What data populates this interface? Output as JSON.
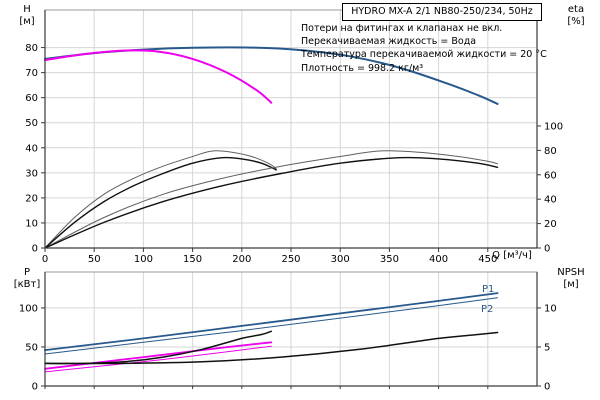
{
  "panel": {
    "title_box": "HYDRO MX-A 2/1 NB80-250/234, 50Hz"
  },
  "info_lines": [
    "Потери на фитингах и клапанах не вкл.",
    "Перекачиваемая жидкость = Вода",
    "Температура перекачиваемой жидкости = 20 °C",
    "Плотность = 998.2 кг/м³"
  ],
  "labels": {
    "p1": "P1",
    "p2": "P2"
  },
  "axis_titles": {
    "head": "H\n[м]",
    "eta": "eta\n[%]",
    "power": "P\n[кВт]",
    "npsh": "NPSH\n[м]",
    "flow": "Q [м³/ч]"
  },
  "colors": {
    "two_pumps": "#28598c",
    "one_pump": "#ee00ee",
    "eta_thin": "#5f5f5f",
    "black": "#111111",
    "grid": "#d6d6d6",
    "frame": "#9a9a9a",
    "axis": "#3a3a3a",
    "text": "#000000"
  },
  "chart_data": [
    {
      "name": "hq-chart",
      "type": "line",
      "xlabel": "Q [м³/ч]",
      "ylabel_left": "H [м]",
      "ylabel_right": "eta [%]",
      "xlim": [
        0,
        500
      ],
      "xticks": [
        0,
        50,
        100,
        150,
        200,
        250,
        300,
        350,
        400,
        450
      ],
      "xtick_labels": true,
      "ylim_left": [
        0,
        95
      ],
      "yticks_left": [
        0,
        10,
        20,
        30,
        40,
        50,
        60,
        70,
        80
      ],
      "ylim_right": [
        0,
        195
      ],
      "yticks_right": [
        0,
        20,
        40,
        60,
        80,
        100
      ],
      "grid": true,
      "series": [
        {
          "name": "head-2pumps",
          "axis": "left",
          "color": "two_pumps",
          "width": 2,
          "points": [
            [
              0,
              75.5
            ],
            [
              50,
              77.8
            ],
            [
              100,
              79.2
            ],
            [
              150,
              79.9
            ],
            [
              210,
              80
            ],
            [
              260,
              79
            ],
            [
              310,
              76.5
            ],
            [
              360,
              72
            ],
            [
              410,
              65.5
            ],
            [
              440,
              61
            ],
            [
              460,
              57.5
            ]
          ]
        },
        {
          "name": "head-1pump",
          "axis": "left",
          "color": "one_pump",
          "width": 2,
          "points": [
            [
              0,
              75
            ],
            [
              40,
              77.4
            ],
            [
              80,
              78.8
            ],
            [
              115,
              78.4
            ],
            [
              150,
              75.5
            ],
            [
              185,
              70
            ],
            [
              215,
              63
            ],
            [
              230,
              58
            ]
          ]
        },
        {
          "name": "eta-1pump-a",
          "axis": "right",
          "color": "eta_thin",
          "width": 1,
          "points": [
            [
              0,
              0
            ],
            [
              30,
              25
            ],
            [
              60,
              44
            ],
            [
              90,
              57
            ],
            [
              120,
              67
            ],
            [
              150,
              75
            ],
            [
              170,
              79.5
            ],
            [
              190,
              78.5
            ],
            [
              210,
              75
            ],
            [
              228,
              69
            ],
            [
              235,
              65
            ]
          ]
        },
        {
          "name": "eta-1pump-b",
          "axis": "right",
          "color": "black",
          "width": 1.4,
          "points": [
            [
              0,
              0
            ],
            [
              30,
              21
            ],
            [
              60,
              38
            ],
            [
              90,
              51
            ],
            [
              120,
              61
            ],
            [
              150,
              69.5
            ],
            [
              180,
              74
            ],
            [
              200,
              73
            ],
            [
              220,
              69.5
            ],
            [
              235,
              64
            ]
          ]
        },
        {
          "name": "eta-2pumps-a",
          "axis": "right",
          "color": "eta_thin",
          "width": 1,
          "points": [
            [
              0,
              0
            ],
            [
              60,
              25
            ],
            [
              120,
              44
            ],
            [
              180,
              57
            ],
            [
              240,
              67
            ],
            [
              300,
              75
            ],
            [
              340,
              79.5
            ],
            [
              380,
              78.5
            ],
            [
              420,
              75
            ],
            [
              450,
              71
            ],
            [
              460,
              69
            ]
          ]
        },
        {
          "name": "eta-2pumps-b",
          "axis": "right",
          "color": "black",
          "width": 1.4,
          "points": [
            [
              0,
              0
            ],
            [
              60,
              21
            ],
            [
              120,
              38
            ],
            [
              180,
              51
            ],
            [
              240,
              61
            ],
            [
              300,
              69.5
            ],
            [
              360,
              74
            ],
            [
              400,
              73
            ],
            [
              440,
              69.5
            ],
            [
              460,
              66
            ]
          ]
        }
      ]
    },
    {
      "name": "power-npsh-chart",
      "type": "line",
      "xlabel": "Q [м³/ч]",
      "ylabel_left": "P [кВт]",
      "ylabel_right": "NPSH [м]",
      "xlim": [
        0,
        500
      ],
      "xticks": [
        0,
        50,
        100,
        150,
        200,
        250,
        300,
        350,
        400,
        450
      ],
      "xtick_labels": false,
      "ylim_left": [
        0,
        146
      ],
      "yticks_left": [
        0,
        50,
        100
      ],
      "ylim_right": [
        0,
        14.6
      ],
      "yticks_right": [
        0,
        5,
        10
      ],
      "grid": true,
      "series": [
        {
          "name": "p1-2pumps",
          "axis": "left",
          "color": "two_pumps",
          "width": 1.8,
          "points": [
            [
              0,
              46
            ],
            [
              100,
              61
            ],
            [
              200,
              77
            ],
            [
              300,
              93
            ],
            [
              400,
              109
            ],
            [
              460,
              119
            ]
          ]
        },
        {
          "name": "p2-2pumps",
          "axis": "left",
          "color": "two_pumps",
          "width": 1,
          "points": [
            [
              0,
              41
            ],
            [
              100,
              56
            ],
            [
              200,
              71
            ],
            [
              300,
              87
            ],
            [
              400,
              103
            ],
            [
              460,
              113
            ]
          ]
        },
        {
          "name": "p1-1pump",
          "axis": "left",
          "color": "one_pump",
          "width": 1.8,
          "points": [
            [
              0,
              22
            ],
            [
              60,
              31
            ],
            [
              120,
              40
            ],
            [
              180,
              49
            ],
            [
              230,
              56
            ]
          ]
        },
        {
          "name": "p2-1pump",
          "axis": "left",
          "color": "one_pump",
          "width": 1,
          "points": [
            [
              0,
              18
            ],
            [
              60,
              26
            ],
            [
              120,
              34
            ],
            [
              180,
              43
            ],
            [
              230,
              51
            ]
          ]
        },
        {
          "name": "npsh-1pump",
          "axis": "right",
          "color": "black",
          "width": 1.5,
          "points": [
            [
              0,
              2.9
            ],
            [
              40,
              2.9
            ],
            [
              80,
              3.1
            ],
            [
              120,
              3.7
            ],
            [
              160,
              4.7
            ],
            [
              200,
              6.1
            ],
            [
              220,
              6.6
            ],
            [
              230,
              7.0
            ]
          ]
        },
        {
          "name": "npsh-2pumps",
          "axis": "right",
          "color": "black",
          "width": 1.5,
          "points": [
            [
              0,
              2.9
            ],
            [
              80,
              2.9
            ],
            [
              160,
              3.1
            ],
            [
              240,
              3.7
            ],
            [
              320,
              4.7
            ],
            [
              400,
              6.1
            ],
            [
              440,
              6.6
            ],
            [
              460,
              6.85
            ]
          ]
        }
      ]
    }
  ]
}
